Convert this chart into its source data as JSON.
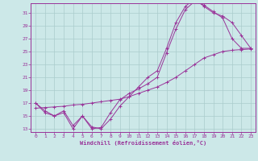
{
  "xlabel": "Windchill (Refroidissement éolien,°C)",
  "bg_color": "#cce8e8",
  "line_color": "#993399",
  "grid_color": "#aacccc",
  "xlim": [
    -0.5,
    23.5
  ],
  "ylim": [
    12.5,
    32.5
  ],
  "yticks": [
    13,
    15,
    17,
    19,
    21,
    23,
    25,
    27,
    29,
    31
  ],
  "xticks": [
    0,
    1,
    2,
    3,
    4,
    5,
    6,
    7,
    8,
    9,
    10,
    11,
    12,
    13,
    14,
    15,
    16,
    17,
    18,
    19,
    20,
    21,
    22,
    23
  ],
  "line1_x": [
    0,
    1,
    2,
    3,
    4,
    5,
    6,
    7,
    8,
    9,
    10,
    11,
    12,
    13,
    14,
    15,
    16,
    17,
    18,
    19,
    20,
    21,
    22,
    23
  ],
  "line1_y": [
    17.0,
    15.5,
    15.0,
    15.5,
    13.0,
    15.0,
    13.0,
    13.2,
    15.5,
    17.5,
    18.5,
    19.2,
    20.0,
    21.0,
    24.8,
    28.5,
    31.5,
    32.8,
    32.2,
    31.2,
    30.2,
    27.0,
    25.5,
    25.5
  ],
  "line2_x": [
    0,
    1,
    2,
    3,
    4,
    5,
    6,
    7,
    8,
    9,
    10,
    11,
    12,
    13,
    14,
    15,
    16,
    17,
    18,
    19,
    20,
    21,
    22,
    23
  ],
  "line2_y": [
    16.2,
    16.3,
    16.4,
    16.5,
    16.7,
    16.8,
    17.0,
    17.2,
    17.4,
    17.6,
    18.0,
    18.5,
    19.0,
    19.5,
    20.2,
    21.0,
    22.0,
    23.0,
    24.0,
    24.5,
    25.0,
    25.2,
    25.3,
    25.4
  ],
  "line3_x": [
    0,
    1,
    2,
    3,
    4,
    5,
    6,
    7,
    8,
    9,
    10,
    11,
    12,
    13,
    14,
    15,
    16,
    17,
    18,
    19,
    20,
    21,
    22,
    23
  ],
  "line3_y": [
    17.0,
    15.8,
    15.0,
    15.8,
    13.5,
    15.0,
    13.3,
    13.0,
    14.5,
    16.5,
    18.0,
    19.5,
    21.0,
    22.0,
    25.5,
    29.5,
    32.0,
    33.2,
    32.0,
    31.0,
    30.5,
    29.5,
    27.5,
    25.5
  ]
}
